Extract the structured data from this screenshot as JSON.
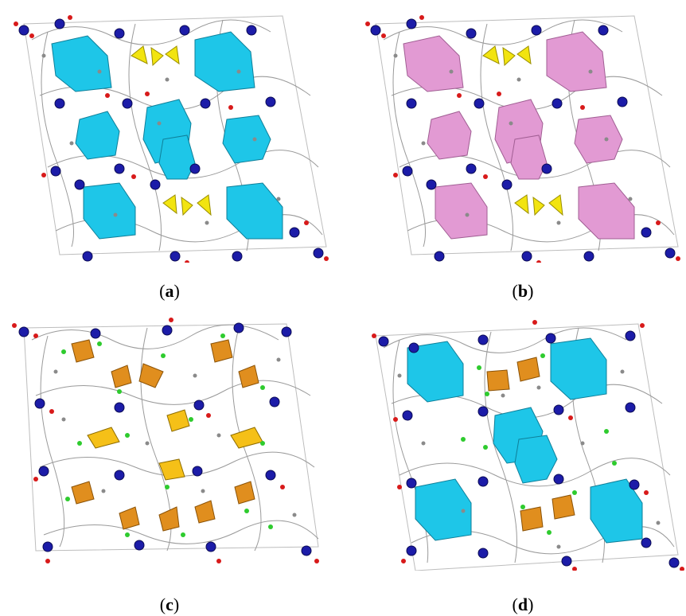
{
  "captions": {
    "a": "a",
    "b": "b",
    "c": "c",
    "d": "d"
  },
  "colors": {
    "background": "#ffffff",
    "cyan_polyhedra": "#1ec6e8",
    "pink_polyhedra": "#e29ad3",
    "yellow_polyhedra": "#f2e410",
    "orange_polyhedra": "#e08e1e",
    "gold_polyhedra": "#f5c018",
    "metal_nodes": "#1c1ca8",
    "oxygen_atoms": "#d81a1a",
    "carbon_atoms": "#8a8a8a",
    "nitrogen_atoms": "#6fa7e6",
    "chloride_atoms": "#2ecb2e"
  }
}
